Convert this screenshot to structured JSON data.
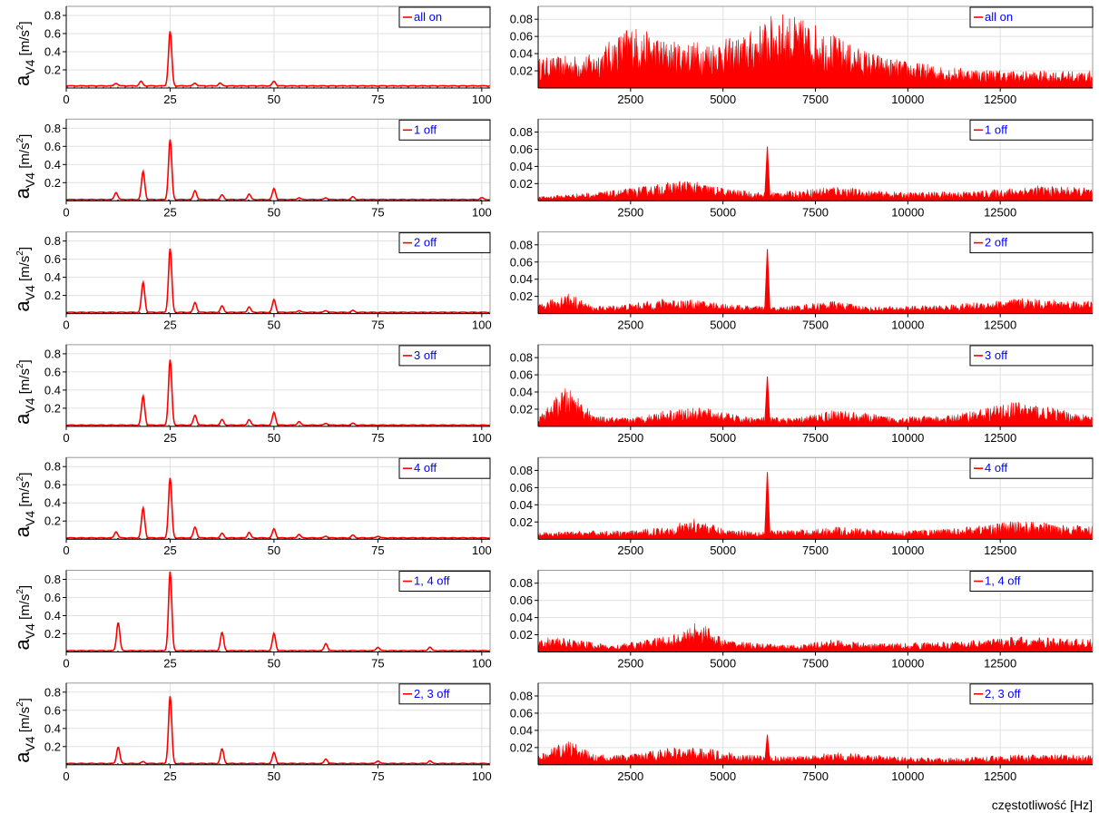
{
  "figure": {
    "xlabel": "częstotliwość [Hz]",
    "ylabel_main": "a",
    "ylabel_sub": "V4",
    "ylabel_unit": "[m/s",
    "ylabel_exp": "2",
    "ylabel_close": "]"
  },
  "colors": {
    "series": "#ff0000",
    "baseline": "#000000",
    "legend_text": "#0000ff",
    "grid": "#e0e0e0",
    "axis": "#000000"
  },
  "chart_data": [
    {
      "type": "line",
      "panel": "low",
      "label": "all on",
      "xlim": [
        0,
        102
      ],
      "ylim": [
        0,
        0.9
      ],
      "xticks": [
        0,
        25,
        50,
        75,
        100
      ],
      "xticklabels": [
        "0",
        "25",
        "50",
        "75",
        "100"
      ],
      "yticks": [
        0.2,
        0.4,
        0.6,
        0.8
      ],
      "yticklabels": [
        "0.2",
        "0.4",
        "0.6",
        "0.8"
      ],
      "grid": true,
      "legend": "top-right",
      "baseline": 0.02,
      "peaks": [
        [
          25,
          0.6
        ],
        [
          18,
          0.05
        ],
        [
          50,
          0.05
        ],
        [
          12,
          0.03
        ],
        [
          31,
          0.03
        ],
        [
          37,
          0.03
        ]
      ]
    },
    {
      "type": "line",
      "panel": "high",
      "label": "all on",
      "xlim": [
        0,
        15000
      ],
      "ylim": [
        0,
        0.095
      ],
      "xticks": [
        2500,
        5000,
        7500,
        10000,
        12500
      ],
      "xticklabels": [
        "2500",
        "5000",
        "7500",
        "10000",
        "12500"
      ],
      "yticks": [
        0.02,
        0.04,
        0.06,
        0.08
      ],
      "yticklabels": [
        "0.02",
        "0.04",
        "0.06",
        "0.08"
      ],
      "grid": true,
      "legend": "top-right",
      "envelope": [
        [
          0,
          0.035
        ],
        [
          1500,
          0.04
        ],
        [
          2500,
          0.075
        ],
        [
          3500,
          0.055
        ],
        [
          4500,
          0.055
        ],
        [
          5500,
          0.06
        ],
        [
          6500,
          0.09
        ],
        [
          7500,
          0.075
        ],
        [
          8500,
          0.05
        ],
        [
          9500,
          0.035
        ],
        [
          11000,
          0.025
        ],
        [
          13000,
          0.02
        ],
        [
          15000,
          0.02
        ]
      ]
    },
    {
      "type": "line",
      "panel": "low",
      "label": "1 off",
      "xlim": [
        0,
        102
      ],
      "ylim": [
        0,
        0.9
      ],
      "xticks": [
        0,
        25,
        50,
        75,
        100
      ],
      "xticklabels": [
        "0",
        "25",
        "50",
        "75",
        "100"
      ],
      "yticks": [
        0.2,
        0.4,
        0.6,
        0.8
      ],
      "yticklabels": [
        "0.2",
        "0.4",
        "0.6",
        "0.8"
      ],
      "grid": true,
      "legend": "top-right",
      "baseline": 0.01,
      "peaks": [
        [
          12,
          0.08
        ],
        [
          18.5,
          0.31
        ],
        [
          25,
          0.66
        ],
        [
          31,
          0.1
        ],
        [
          37.5,
          0.05
        ],
        [
          44,
          0.06
        ],
        [
          50,
          0.12
        ],
        [
          56,
          0.02
        ],
        [
          62.5,
          0.02
        ],
        [
          69,
          0.03
        ],
        [
          100,
          0.02
        ]
      ]
    },
    {
      "type": "line",
      "panel": "high",
      "label": "1 off",
      "xlim": [
        0,
        15000
      ],
      "ylim": [
        0,
        0.095
      ],
      "xticks": [
        2500,
        5000,
        7500,
        10000,
        12500
      ],
      "xticklabels": [
        "2500",
        "5000",
        "7500",
        "10000",
        "12500"
      ],
      "yticks": [
        0.02,
        0.04,
        0.06,
        0.08
      ],
      "yticklabels": [
        "0.02",
        "0.04",
        "0.06",
        "0.08"
      ],
      "grid": true,
      "legend": "top-right",
      "spike": [
        6200,
        0.063
      ],
      "envelope": [
        [
          0,
          0.005
        ],
        [
          2000,
          0.012
        ],
        [
          3000,
          0.018
        ],
        [
          4000,
          0.025
        ],
        [
          5000,
          0.015
        ],
        [
          6000,
          0.01
        ],
        [
          7000,
          0.012
        ],
        [
          8000,
          0.018
        ],
        [
          9000,
          0.012
        ],
        [
          10000,
          0.01
        ],
        [
          12000,
          0.012
        ],
        [
          13500,
          0.018
        ],
        [
          15000,
          0.015
        ]
      ]
    },
    {
      "type": "line",
      "panel": "low",
      "label": "2 off",
      "xlim": [
        0,
        102
      ],
      "ylim": [
        0,
        0.9
      ],
      "xticks": [
        0,
        25,
        50,
        75,
        100
      ],
      "xticklabels": [
        "0",
        "25",
        "50",
        "75",
        "100"
      ],
      "yticks": [
        0.2,
        0.4,
        0.6,
        0.8
      ],
      "yticklabels": [
        "0.2",
        "0.4",
        "0.6",
        "0.8"
      ],
      "grid": true,
      "legend": "top-right",
      "baseline": 0.01,
      "peaks": [
        [
          18.5,
          0.33
        ],
        [
          25,
          0.7
        ],
        [
          31,
          0.11
        ],
        [
          37.5,
          0.07
        ],
        [
          44,
          0.06
        ],
        [
          50,
          0.14
        ],
        [
          56,
          0.02
        ],
        [
          62.5,
          0.02
        ],
        [
          69,
          0.02
        ]
      ]
    },
    {
      "type": "line",
      "panel": "high",
      "label": "2 off",
      "xlim": [
        0,
        15000
      ],
      "ylim": [
        0,
        0.095
      ],
      "xticks": [
        2500,
        5000,
        7500,
        10000,
        12500
      ],
      "xticklabels": [
        "2500",
        "5000",
        "7500",
        "10000",
        "12500"
      ],
      "yticks": [
        0.02,
        0.04,
        0.06,
        0.08
      ],
      "yticklabels": [
        "0.02",
        "0.04",
        "0.06",
        "0.08"
      ],
      "grid": true,
      "legend": "top-right",
      "spike": [
        6200,
        0.075
      ],
      "envelope": [
        [
          0,
          0.01
        ],
        [
          800,
          0.025
        ],
        [
          1500,
          0.008
        ],
        [
          2500,
          0.012
        ],
        [
          3500,
          0.018
        ],
        [
          4500,
          0.015
        ],
        [
          5500,
          0.01
        ],
        [
          6500,
          0.008
        ],
        [
          8000,
          0.015
        ],
        [
          9000,
          0.008
        ],
        [
          11000,
          0.01
        ],
        [
          13000,
          0.018
        ],
        [
          15000,
          0.015
        ]
      ]
    },
    {
      "type": "line",
      "panel": "low",
      "label": "3 off",
      "xlim": [
        0,
        102
      ],
      "ylim": [
        0,
        0.9
      ],
      "xticks": [
        0,
        25,
        50,
        75,
        100
      ],
      "xticklabels": [
        "0",
        "25",
        "50",
        "75",
        "100"
      ],
      "yticks": [
        0.2,
        0.4,
        0.6,
        0.8
      ],
      "yticklabels": [
        "0.2",
        "0.4",
        "0.6",
        "0.8"
      ],
      "grid": true,
      "legend": "top-right",
      "baseline": 0.01,
      "peaks": [
        [
          18.5,
          0.32
        ],
        [
          25,
          0.72
        ],
        [
          31,
          0.11
        ],
        [
          37.5,
          0.06
        ],
        [
          44,
          0.06
        ],
        [
          50,
          0.14
        ],
        [
          56,
          0.04
        ],
        [
          62.5,
          0.02
        ],
        [
          69,
          0.02
        ]
      ]
    },
    {
      "type": "line",
      "panel": "high",
      "label": "3 off",
      "xlim": [
        0,
        15000
      ],
      "ylim": [
        0,
        0.095
      ],
      "xticks": [
        2500,
        5000,
        7500,
        10000,
        12500
      ],
      "xticklabels": [
        "2500",
        "5000",
        "7500",
        "10000",
        "12500"
      ],
      "yticks": [
        0.02,
        0.04,
        0.06,
        0.08
      ],
      "yticklabels": [
        "0.02",
        "0.04",
        "0.06",
        "0.08"
      ],
      "grid": true,
      "legend": "top-right",
      "spike": [
        6200,
        0.058
      ],
      "envelope": [
        [
          0,
          0.01
        ],
        [
          700,
          0.045
        ],
        [
          1000,
          0.04
        ],
        [
          1500,
          0.012
        ],
        [
          2500,
          0.01
        ],
        [
          3500,
          0.02
        ],
        [
          4500,
          0.022
        ],
        [
          5500,
          0.012
        ],
        [
          7000,
          0.01
        ],
        [
          8000,
          0.02
        ],
        [
          9500,
          0.012
        ],
        [
          11000,
          0.012
        ],
        [
          13000,
          0.03
        ],
        [
          15000,
          0.012
        ]
      ]
    },
    {
      "type": "line",
      "panel": "low",
      "label": "4 off",
      "xlim": [
        0,
        102
      ],
      "ylim": [
        0,
        0.9
      ],
      "xticks": [
        0,
        25,
        50,
        75,
        100
      ],
      "xticklabels": [
        "0",
        "25",
        "50",
        "75",
        "100"
      ],
      "yticks": [
        0.2,
        0.4,
        0.6,
        0.8
      ],
      "yticklabels": [
        "0.2",
        "0.4",
        "0.6",
        "0.8"
      ],
      "grid": true,
      "legend": "top-right",
      "baseline": 0.01,
      "peaks": [
        [
          12,
          0.07
        ],
        [
          18.5,
          0.33
        ],
        [
          25,
          0.66
        ],
        [
          31,
          0.12
        ],
        [
          37.5,
          0.05
        ],
        [
          44,
          0.06
        ],
        [
          50,
          0.1
        ],
        [
          56,
          0.04
        ],
        [
          62.5,
          0.02
        ],
        [
          69,
          0.03
        ],
        [
          75,
          0.02
        ]
      ]
    },
    {
      "type": "line",
      "panel": "high",
      "label": "4 off",
      "xlim": [
        0,
        15000
      ],
      "ylim": [
        0,
        0.095
      ],
      "xticks": [
        2500,
        5000,
        7500,
        10000,
        12500
      ],
      "xticklabels": [
        "2500",
        "5000",
        "7500",
        "10000",
        "12500"
      ],
      "yticks": [
        0.02,
        0.04,
        0.06,
        0.08
      ],
      "yticklabels": [
        "0.02",
        "0.04",
        "0.06",
        "0.08"
      ],
      "grid": true,
      "legend": "top-right",
      "spike": [
        6200,
        0.078
      ],
      "envelope": [
        [
          0,
          0.008
        ],
        [
          1500,
          0.01
        ],
        [
          2500,
          0.01
        ],
        [
          3500,
          0.015
        ],
        [
          4300,
          0.025
        ],
        [
          5000,
          0.012
        ],
        [
          6000,
          0.01
        ],
        [
          7500,
          0.012
        ],
        [
          8000,
          0.015
        ],
        [
          9500,
          0.01
        ],
        [
          11000,
          0.012
        ],
        [
          13000,
          0.022
        ],
        [
          15000,
          0.015
        ]
      ]
    },
    {
      "type": "line",
      "panel": "low",
      "label": "1, 4 off",
      "xlim": [
        0,
        102
      ],
      "ylim": [
        0,
        0.9
      ],
      "xticks": [
        0,
        25,
        50,
        75,
        100
      ],
      "xticklabels": [
        "0",
        "25",
        "50",
        "75",
        "100"
      ],
      "yticks": [
        0.2,
        0.4,
        0.6,
        0.8
      ],
      "yticklabels": [
        "0.2",
        "0.4",
        "0.6",
        "0.8"
      ],
      "grid": true,
      "legend": "top-right",
      "baseline": 0.01,
      "peaks": [
        [
          12.5,
          0.31
        ],
        [
          25,
          0.87
        ],
        [
          37.5,
          0.2
        ],
        [
          50,
          0.19
        ],
        [
          62.5,
          0.08
        ],
        [
          75,
          0.04
        ],
        [
          87.5,
          0.04
        ]
      ]
    },
    {
      "type": "line",
      "panel": "high",
      "label": "1, 4 off",
      "xlim": [
        0,
        15000
      ],
      "ylim": [
        0,
        0.095
      ],
      "xticks": [
        2500,
        5000,
        7500,
        10000,
        12500
      ],
      "xticklabels": [
        "2500",
        "5000",
        "7500",
        "10000",
        "12500"
      ],
      "yticks": [
        0.02,
        0.04,
        0.06,
        0.08
      ],
      "yticklabels": [
        "0.02",
        "0.04",
        "0.06",
        "0.08"
      ],
      "grid": true,
      "legend": "top-right",
      "envelope": [
        [
          0,
          0.018
        ],
        [
          1000,
          0.015
        ],
        [
          2000,
          0.008
        ],
        [
          3000,
          0.015
        ],
        [
          4000,
          0.025
        ],
        [
          4300,
          0.04
        ],
        [
          5000,
          0.015
        ],
        [
          6000,
          0.01
        ],
        [
          7000,
          0.008
        ],
        [
          8000,
          0.015
        ],
        [
          9000,
          0.01
        ],
        [
          11000,
          0.012
        ],
        [
          13000,
          0.018
        ],
        [
          15000,
          0.015
        ]
      ]
    },
    {
      "type": "line",
      "panel": "low",
      "label": "2, 3 off",
      "xlim": [
        0,
        102
      ],
      "ylim": [
        0,
        0.9
      ],
      "xticks": [
        0,
        25,
        50,
        75,
        100
      ],
      "xticklabels": [
        "0",
        "25",
        "50",
        "75",
        "100"
      ],
      "yticks": [
        0.2,
        0.4,
        0.6,
        0.8
      ],
      "yticklabels": [
        "0.2",
        "0.4",
        "0.6",
        "0.8"
      ],
      "grid": true,
      "legend": "top-right",
      "baseline": 0.01,
      "peaks": [
        [
          12.5,
          0.18
        ],
        [
          18.5,
          0.02
        ],
        [
          25,
          0.74
        ],
        [
          37.5,
          0.16
        ],
        [
          50,
          0.12
        ],
        [
          62.5,
          0.05
        ],
        [
          75,
          0.03
        ],
        [
          87.5,
          0.03
        ]
      ]
    },
    {
      "type": "line",
      "panel": "high",
      "label": "2, 3 off",
      "xlim": [
        0,
        15000
      ],
      "ylim": [
        0,
        0.095
      ],
      "xticks": [
        2500,
        5000,
        7500,
        10000,
        12500
      ],
      "xticklabels": [
        "2500",
        "5000",
        "7500",
        "10000",
        "12500"
      ],
      "yticks": [
        0.02,
        0.04,
        0.06,
        0.08
      ],
      "yticklabels": [
        "0.02",
        "0.04",
        "0.06",
        "0.08"
      ],
      "grid": true,
      "legend": "top-right",
      "spike": [
        6200,
        0.035
      ],
      "envelope": [
        [
          0,
          0.01
        ],
        [
          800,
          0.03
        ],
        [
          1500,
          0.012
        ],
        [
          2500,
          0.012
        ],
        [
          3500,
          0.02
        ],
        [
          4500,
          0.02
        ],
        [
          5500,
          0.012
        ],
        [
          7000,
          0.01
        ],
        [
          8000,
          0.015
        ],
        [
          9500,
          0.01
        ],
        [
          11000,
          0.008
        ],
        [
          13000,
          0.012
        ],
        [
          15000,
          0.012
        ]
      ]
    }
  ]
}
